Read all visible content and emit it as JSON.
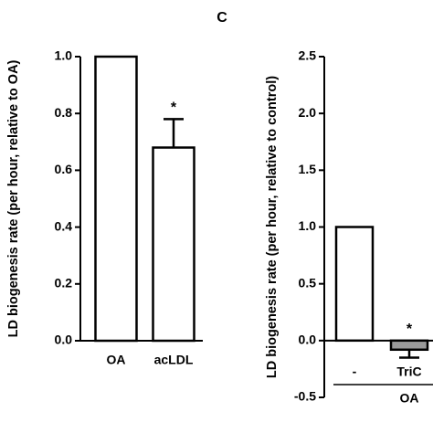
{
  "chart_data": [
    {
      "type": "bar",
      "ylabel": "LD biogenesis rate (per hour, relative to OA)",
      "categories": [
        "OA",
        "acLDL"
      ],
      "values": [
        1.0,
        0.68
      ],
      "errors": [
        0,
        0.1
      ],
      "significance": [
        null,
        "*"
      ],
      "colors": [
        "#ffffff",
        "#ffffff"
      ],
      "ylim": [
        0,
        1
      ],
      "yticks": [
        {
          "value": 0,
          "label": "0.0"
        },
        {
          "value": 0.2,
          "label": "0.2"
        },
        {
          "value": 0.4,
          "label": "0.4"
        },
        {
          "value": 0.6,
          "label": "0.6"
        },
        {
          "value": 0.8,
          "label": "0.8"
        },
        {
          "value": 1,
          "label": "1.0"
        }
      ]
    },
    {
      "type": "bar",
      "panel_label": "C",
      "ylabel": "LD biogenesis rate (per hour, relative to control)",
      "categories": [
        "-",
        "TriC"
      ],
      "group_label": "OA",
      "values": [
        1.0,
        -0.08
      ],
      "errors": [
        0,
        0.07
      ],
      "significance": [
        null,
        "*"
      ],
      "colors": [
        "#ffffff",
        "#9a9a9a"
      ],
      "ylim": [
        -0.5,
        2.5
      ],
      "yticks": [
        {
          "value": -0.5,
          "label": "-0.5"
        },
        {
          "value": 0,
          "label": "0.0"
        },
        {
          "value": 0.5,
          "label": "0.5"
        },
        {
          "value": 1,
          "label": "1.0"
        },
        {
          "value": 1.5,
          "label": "1.5"
        },
        {
          "value": 2,
          "label": "2.0"
        },
        {
          "value": 2.5,
          "label": "2.5"
        }
      ]
    }
  ]
}
